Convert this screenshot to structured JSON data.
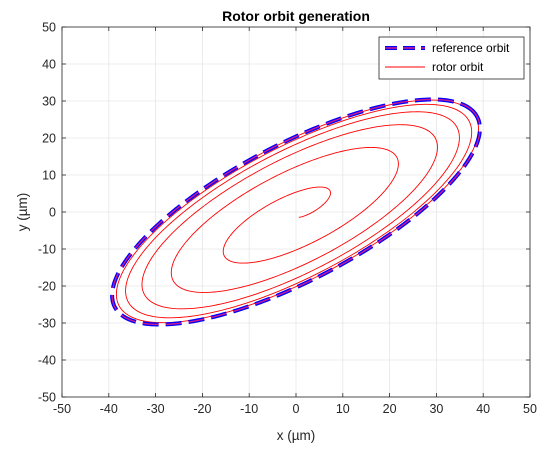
{
  "chart_data": {
    "type": "line",
    "title": "Rotor orbit generation",
    "xlabel": "x (µm)",
    "ylabel": "y (µm)",
    "xlim": [
      -50,
      50
    ],
    "ylim": [
      -50,
      50
    ],
    "xticks": [
      -50,
      -40,
      -30,
      -20,
      -10,
      0,
      10,
      20,
      30,
      40,
      50
    ],
    "yticks": [
      -50,
      -40,
      -30,
      -20,
      -10,
      0,
      10,
      20,
      30,
      40,
      50
    ],
    "grid": true,
    "legend_position": "top-right",
    "series": [
      {
        "name": "reference orbit",
        "color": "#0000ff",
        "dash_color": "#cc1b8c",
        "style": "dashed",
        "shape": "ellipse",
        "major_axis_endpoints": [
          [
            -38,
            -27
          ],
          [
            38,
            27
          ]
        ],
        "minor_axis_endpoints": [
          [
            -10,
            14
          ],
          [
            10,
            -14
          ]
        ],
        "extent_x": [
          -45,
          45
        ],
        "extent_y": [
          -33,
          33
        ]
      },
      {
        "name": "rotor orbit",
        "color": "#ff0000",
        "style": "solid",
        "shape": "spiral converging to reference orbit",
        "start": [
          0,
          -2
        ],
        "revolutions": 5.5
      }
    ]
  }
}
